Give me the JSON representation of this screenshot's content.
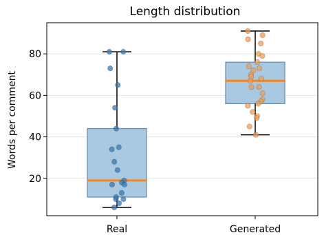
{
  "chart_data": {
    "type": "box",
    "title": "Length distribution",
    "xlabel": "",
    "ylabel": "Words per comment",
    "categories": [
      "Real",
      "Generated"
    ],
    "ylim": [
      2,
      95
    ],
    "yticks": [
      20,
      40,
      60,
      80
    ],
    "grid": "horizontal",
    "box_color": "#a9c9e3",
    "median_color": "#f5861f",
    "boxes": [
      {
        "name": "Real",
        "whisker_low": 6,
        "q1": 11,
        "median": 19,
        "q3": 44,
        "whisker_high": 81,
        "points_color": "#3a78b3",
        "points": [
          81,
          81,
          73,
          65,
          54,
          44,
          35,
          34,
          28,
          24,
          19,
          18,
          17,
          17,
          13,
          11,
          10,
          10,
          8,
          6
        ]
      },
      {
        "name": "Generated",
        "whisker_low": 41,
        "q1": 56,
        "median": 67,
        "q3": 76,
        "whisker_high": 91,
        "points_color": "#f29b52",
        "points": [
          91,
          89,
          87,
          85,
          80,
          79,
          76,
          74,
          73,
          72,
          70,
          69,
          68,
          67,
          64,
          64,
          61,
          58,
          57,
          56,
          55,
          52,
          50,
          49,
          45,
          41
        ]
      }
    ]
  }
}
